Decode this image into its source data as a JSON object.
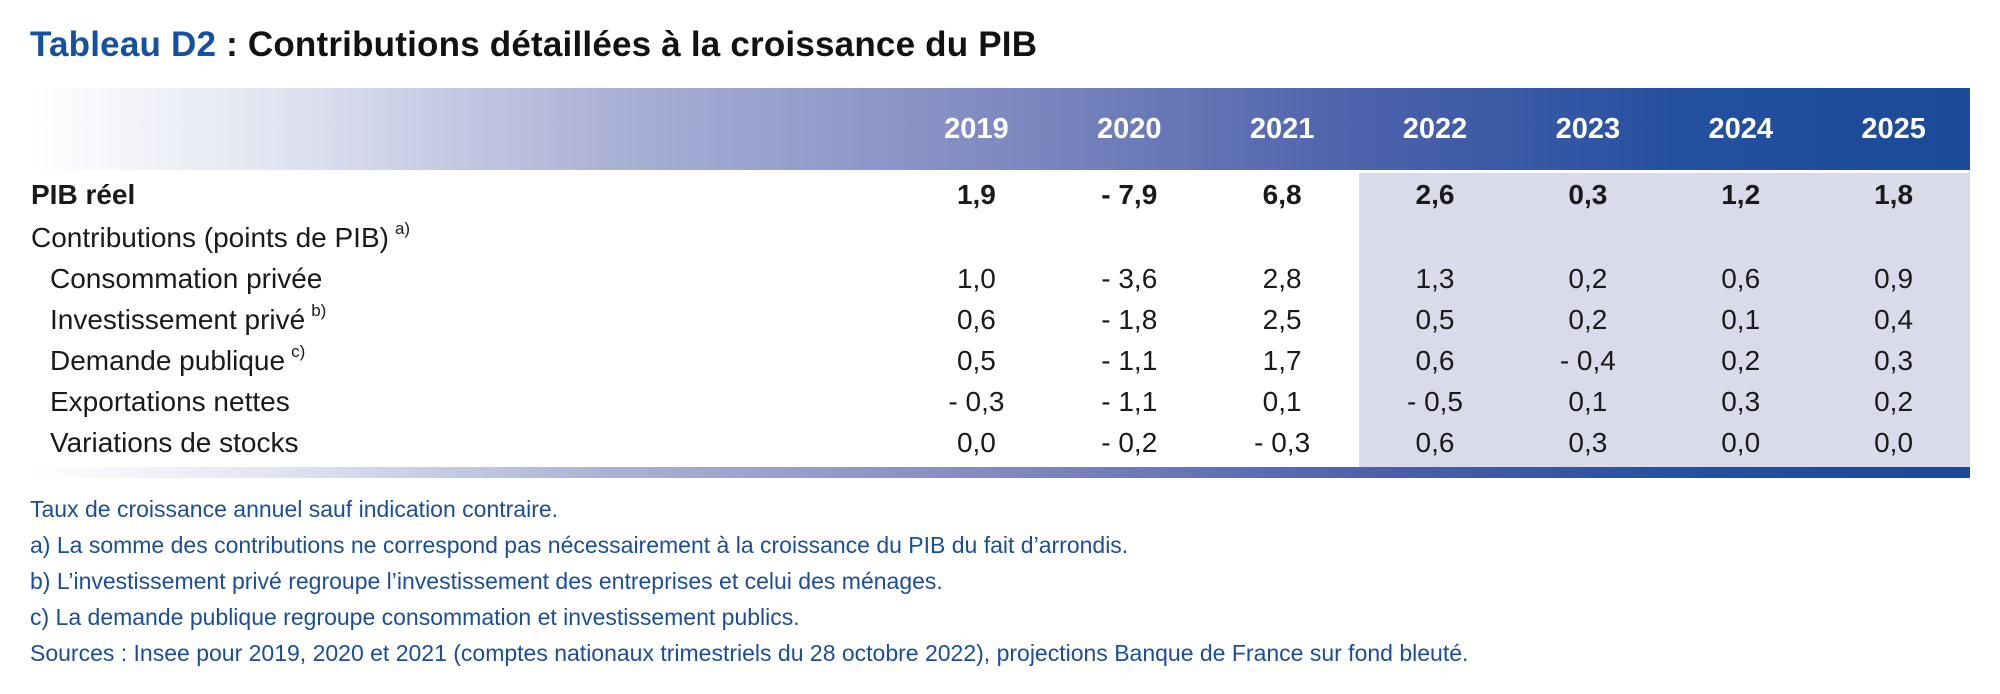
{
  "title": {
    "prefix": "Tableau D2",
    "separator": " : ",
    "text": "Contributions détaillées à la croissance du PIB"
  },
  "colors": {
    "title_accent": "#1451a3",
    "header_gradient_end": "#1a4a99",
    "projection_background": "#d9dbeb",
    "footnote_text": "#1a4d9e"
  },
  "table": {
    "years": [
      "2019",
      "2020",
      "2021",
      "2022",
      "2023",
      "2024",
      "2025"
    ],
    "projection_years": [
      "2022",
      "2023",
      "2024",
      "2025"
    ],
    "projection_start_index": 3,
    "rows": [
      {
        "label": "PIB réel",
        "sup": "",
        "bold": true,
        "indent": false,
        "values": [
          "1,9",
          "- 7,9",
          "6,8",
          "2,6",
          "0,3",
          "1,2",
          "1,8"
        ]
      },
      {
        "label": "Contributions (points de PIB)",
        "sup": "a)",
        "bold": false,
        "indent": false,
        "values": [
          "",
          "",
          "",
          "",
          "",
          "",
          ""
        ]
      },
      {
        "label": "Consommation privée",
        "sup": "",
        "bold": false,
        "indent": true,
        "values": [
          "1,0",
          "- 3,6",
          "2,8",
          "1,3",
          "0,2",
          "0,6",
          "0,9"
        ]
      },
      {
        "label": "Investissement privé",
        "sup": "b)",
        "bold": false,
        "indent": true,
        "values": [
          "0,6",
          "- 1,8",
          "2,5",
          "0,5",
          "0,2",
          "0,1",
          "0,4"
        ]
      },
      {
        "label": "Demande publique",
        "sup": "c)",
        "bold": false,
        "indent": true,
        "values": [
          "0,5",
          "- 1,1",
          "1,7",
          "0,6",
          "- 0,4",
          "0,2",
          "0,3"
        ]
      },
      {
        "label": "Exportations nettes",
        "sup": "",
        "bold": false,
        "indent": true,
        "values": [
          "- 0,3",
          "- 1,1",
          "0,1",
          "- 0,5",
          "0,1",
          "0,3",
          "0,2"
        ]
      },
      {
        "label": "Variations de stocks",
        "sup": "",
        "bold": false,
        "indent": true,
        "values": [
          "0,0",
          "- 0,2",
          "- 0,3",
          "0,6",
          "0,3",
          "0,0",
          "0,0"
        ]
      }
    ]
  },
  "footnotes": [
    "Taux de croissance annuel sauf indication contraire.",
    "a) La somme des contributions ne correspond pas nécessairement à la croissance du PIB du fait d’arrondis.",
    "b) L’investissement privé regroupe l’investissement des entreprises et celui des ménages.",
    "c) La demande publique regroupe consommation et investissement publics.",
    "Sources : Insee pour 2019, 2020 et 2021 (comptes nationaux trimestriels du 28 octobre 2022), projections Banque de France sur fond bleuté."
  ]
}
